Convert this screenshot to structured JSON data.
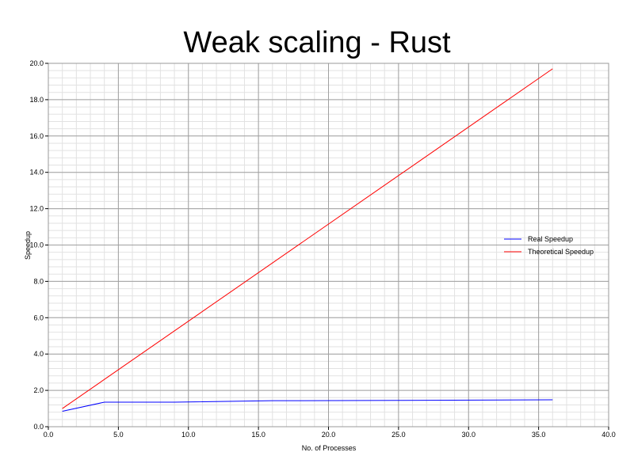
{
  "chart_data": {
    "type": "line",
    "title": "Weak scaling - Rust",
    "xlabel": "No. of Processes",
    "ylabel": "Speedup",
    "xlim": [
      0,
      40
    ],
    "ylim": [
      0,
      20
    ],
    "x_major_ticks": [
      0,
      5,
      10,
      15,
      20,
      25,
      30,
      35,
      40
    ],
    "y_major_ticks": [
      0,
      2,
      4,
      6,
      8,
      10,
      12,
      14,
      16,
      18,
      20
    ],
    "x_tick_labels": [
      "0.0",
      "5.0",
      "10.0",
      "15.0",
      "20.0",
      "25.0",
      "30.0",
      "35.0",
      "40.0"
    ],
    "y_tick_labels": [
      "0.0",
      "2.0",
      "4.0",
      "6.0",
      "8.0",
      "10.0",
      "12.0",
      "14.0",
      "16.0",
      "18.0",
      "20.0"
    ],
    "grid": true,
    "minor_grid": true,
    "legend_position": "right",
    "series": [
      {
        "name": "Real Speedup",
        "color": "#0000ff",
        "x": [
          1,
          4,
          9,
          16,
          25,
          36
        ],
        "y": [
          0.85,
          1.35,
          1.35,
          1.43,
          1.45,
          1.48
        ]
      },
      {
        "name": "Theoretical Speedup",
        "color": "#ff0000",
        "x": [
          1,
          36
        ],
        "y": [
          1.0,
          19.7
        ]
      }
    ]
  }
}
